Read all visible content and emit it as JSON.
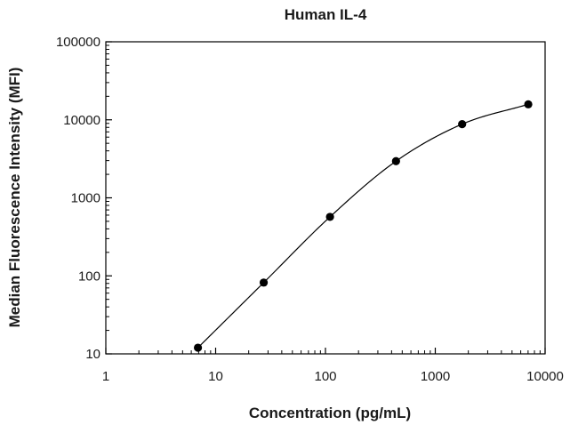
{
  "chart_data": {
    "type": "scatter",
    "title": "Human IL-4",
    "xlabel": "Concentration (pg/mL)",
    "ylabel": "Median Fluorescence Intensity (MFI)",
    "xscale": "log",
    "yscale": "log",
    "xlim": [
      1,
      10000
    ],
    "ylim": [
      10,
      100000
    ],
    "xticks": [
      1,
      10,
      100,
      1000,
      10000
    ],
    "yticks": [
      10,
      100,
      1000,
      10000,
      100000
    ],
    "xtick_labels": [
      "1",
      "10",
      "100",
      "1000",
      "10000"
    ],
    "ytick_labels": [
      "10",
      "100",
      "1000",
      "10000",
      "100000"
    ],
    "grid": false,
    "legend": "none",
    "fit": "smooth standard curve through points",
    "series": [
      {
        "x": [
          6.9,
          27.4,
          110,
          439,
          1756,
          7025
        ],
        "y": [
          12,
          82,
          570,
          2950,
          8800,
          15800
        ]
      }
    ],
    "colors": {
      "marker": "#000000",
      "line": "#000000",
      "axis": "#000000"
    }
  }
}
